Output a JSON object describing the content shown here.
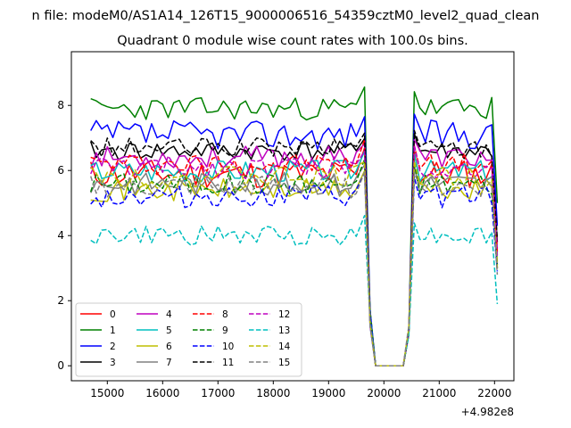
{
  "chart_data": {
    "type": "line",
    "suptitle": "n file: modeM0/AS1A14_126T15_9000006516_54359cztM0_level2_quad_clean",
    "title": "Quadrant 0 module wise count rates with 100.0s bins.",
    "xlabel": "",
    "ylabel": "",
    "x_offset_label": "+4.982e8",
    "xlim": [
      14350,
      22350
    ],
    "ylim": [
      -0.46,
      9.65
    ],
    "xticks": [
      15000,
      16000,
      17000,
      18000,
      19000,
      20000,
      21000,
      22000
    ],
    "xtick_labels": [
      "15000",
      "16000",
      "17000",
      "18000",
      "19000",
      "20000",
      "21000",
      "22000"
    ],
    "yticks": [
      0,
      2,
      4,
      6,
      8
    ],
    "ytick_labels": [
      "0",
      "2",
      "4",
      "6",
      "8"
    ],
    "grid": false,
    "legend_position": "lower-left",
    "gap": {
      "drop_start": 19650,
      "zero_start": 19850,
      "zero_end": 20350,
      "rise_end": 20550,
      "end_drop": 22050
    },
    "series": [
      {
        "name": "0",
        "color": "#ff0000",
        "dash": "solid",
        "level": 5.9,
        "amp": 0.45,
        "end": 3.0,
        "seed": 11
      },
      {
        "name": "1",
        "color": "#008000",
        "dash": "solid",
        "level": 7.9,
        "amp": 0.35,
        "end": 5.0,
        "seed": 23
      },
      {
        "name": "2",
        "color": "#0000ff",
        "dash": "solid",
        "level": 7.1,
        "amp": 0.45,
        "end": 4.3,
        "seed": 37
      },
      {
        "name": "3",
        "color": "#000000",
        "dash": "solid",
        "level": 6.6,
        "amp": 0.3,
        "end": 3.8,
        "seed": 41
      },
      {
        "name": "4",
        "color": "#bf00bf",
        "dash": "solid",
        "level": 6.4,
        "amp": 0.35,
        "end": 3.6,
        "seed": 53
      },
      {
        "name": "5",
        "color": "#00bfbf",
        "dash": "solid",
        "level": 6.0,
        "amp": 0.35,
        "end": 3.4,
        "seed": 67
      },
      {
        "name": "6",
        "color": "#bfbf00",
        "dash": "solid",
        "level": 5.4,
        "amp": 0.35,
        "end": 3.2,
        "seed": 71
      },
      {
        "name": "7",
        "color": "#808080",
        "dash": "solid",
        "level": 5.6,
        "amp": 0.35,
        "end": 3.0,
        "seed": 83
      },
      {
        "name": "8",
        "color": "#ff0000",
        "dash": "dashed",
        "level": 6.2,
        "amp": 0.35,
        "end": 3.5,
        "seed": 97
      },
      {
        "name": "9",
        "color": "#008000",
        "dash": "dashed",
        "level": 5.6,
        "amp": 0.35,
        "end": 3.1,
        "seed": 101
      },
      {
        "name": "10",
        "color": "#0000ff",
        "dash": "dashed",
        "level": 5.2,
        "amp": 0.35,
        "end": 2.9,
        "seed": 113
      },
      {
        "name": "11",
        "color": "#000000",
        "dash": "dashed",
        "level": 6.7,
        "amp": 0.3,
        "end": 3.9,
        "seed": 127
      },
      {
        "name": "12",
        "color": "#bf00bf",
        "dash": "dashed",
        "level": 6.1,
        "amp": 0.35,
        "end": 3.3,
        "seed": 131
      },
      {
        "name": "13",
        "color": "#00bfbf",
        "dash": "dashed",
        "level": 4.0,
        "amp": 0.3,
        "end": 1.9,
        "seed": 149
      },
      {
        "name": "14",
        "color": "#bfbf00",
        "dash": "dashed",
        "level": 5.8,
        "amp": 0.35,
        "end": 3.0,
        "seed": 151
      },
      {
        "name": "15",
        "color": "#808080",
        "dash": "dashed",
        "level": 5.5,
        "amp": 0.35,
        "end": 2.8,
        "seed": 163
      }
    ]
  }
}
